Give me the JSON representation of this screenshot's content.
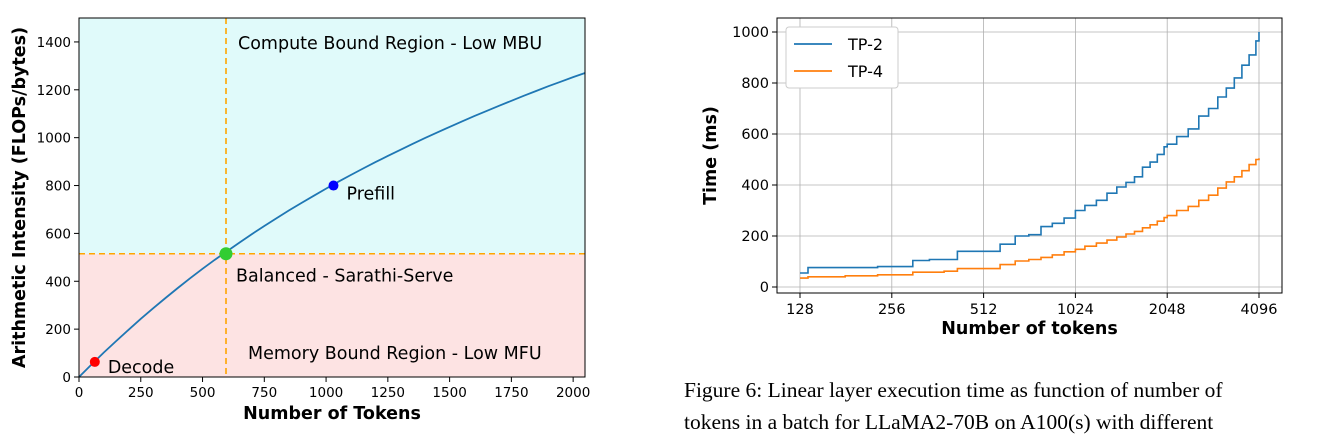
{
  "chart_data": [
    {
      "type": "line",
      "xlabel": "Number of Tokens",
      "ylabel": "Arithmetic Intensity (FLOPs/bytes)",
      "xlim": [
        0,
        2048
      ],
      "ylim": [
        0,
        1500
      ],
      "xticks": [
        0,
        250,
        500,
        750,
        1000,
        1250,
        1500,
        1750,
        2000
      ],
      "yticks": [
        0,
        200,
        400,
        600,
        800,
        1000,
        1200,
        1400
      ],
      "grid": false,
      "series": [
        {
          "color": "#1f77b4",
          "x": [
            0,
            50,
            100,
            150,
            200,
            250,
            300,
            350,
            400,
            450,
            500,
            550,
            600,
            650,
            700,
            750,
            800,
            850,
            900,
            950,
            1000,
            1050,
            1100,
            1150,
            1200,
            1250,
            1300,
            1350,
            1400,
            1450,
            1500,
            1550,
            1600,
            1650,
            1700,
            1750,
            1800,
            1850,
            1900,
            1950,
            2000,
            2048
          ],
          "values": [
            0,
            52,
            102,
            150,
            197,
            243,
            287,
            330,
            372,
            413,
            452,
            490,
            526,
            562,
            597,
            631,
            664,
            696,
            727,
            757,
            787,
            816,
            844,
            871,
            898,
            924,
            949,
            974,
            998,
            1022,
            1045,
            1068,
            1090,
            1112,
            1133,
            1154,
            1175,
            1195,
            1215,
            1234,
            1253,
            1270
          ]
        }
      ],
      "threshold_x": 595,
      "threshold_y": 515,
      "threshold_color": "#ffa500",
      "region_colors": {
        "compute": "#e0fafa",
        "memory": "#fde3e3"
      },
      "region_labels": {
        "compute": "Compute Bound Region - Low MBU",
        "memory": "Memory Bound Region - Low MFU"
      },
      "points": [
        {
          "label": "Decode",
          "x": 64,
          "y": 63,
          "color": "#ff0000"
        },
        {
          "label": "Balanced - Sarathi-Serve",
          "x": 595,
          "y": 515,
          "color": "#32cd32"
        },
        {
          "label": "Prefill",
          "x": 1030,
          "y": 800,
          "color": "#0000ff"
        }
      ]
    },
    {
      "type": "line",
      "xlabel": "Number of tokens",
      "ylabel": "Time (ms)",
      "xscale": "log2",
      "xlim": [
        128,
        4096
      ],
      "ylim": [
        0,
        1000
      ],
      "xticks": [
        128,
        256,
        512,
        1024,
        2048,
        4096
      ],
      "yticks": [
        0,
        200,
        400,
        600,
        800,
        1000
      ],
      "grid": true,
      "legend": "top-left",
      "series": [
        {
          "name": "TP-2",
          "color": "#1f77b4",
          "x": [
            128,
            136,
            180,
            230,
            256,
            300,
            340,
            380,
            420,
            460,
            512,
            580,
            650,
            720,
            790,
            860,
            940,
            1024,
            1100,
            1200,
            1300,
            1400,
            1500,
            1600,
            1700,
            1800,
            1900,
            2000,
            2048,
            2200,
            2400,
            2600,
            2800,
            3000,
            3200,
            3400,
            3600,
            3800,
            4000,
            4096
          ],
          "values": [
            55,
            76,
            76,
            80,
            80,
            104,
            108,
            108,
            140,
            140,
            140,
            168,
            200,
            205,
            237,
            250,
            270,
            300,
            320,
            340,
            368,
            392,
            410,
            432,
            470,
            490,
            520,
            550,
            560,
            590,
            620,
            670,
            700,
            745,
            780,
            820,
            870,
            910,
            965,
            1000
          ]
        },
        {
          "name": "TP-4",
          "color": "#ff7f0e",
          "x": [
            128,
            136,
            180,
            230,
            256,
            300,
            340,
            380,
            420,
            460,
            512,
            580,
            650,
            720,
            790,
            860,
            940,
            1024,
            1100,
            1200,
            1300,
            1400,
            1500,
            1600,
            1700,
            1800,
            1900,
            2000,
            2048,
            2200,
            2400,
            2600,
            2800,
            3000,
            3200,
            3400,
            3600,
            3800,
            4000,
            4096
          ],
          "values": [
            35,
            40,
            44,
            48,
            48,
            58,
            58,
            62,
            72,
            72,
            72,
            88,
            102,
            108,
            116,
            126,
            138,
            148,
            160,
            172,
            184,
            196,
            208,
            218,
            232,
            244,
            258,
            272,
            280,
            300,
            316,
            340,
            360,
            388,
            412,
            432,
            456,
            480,
            500,
            505
          ]
        }
      ]
    }
  ],
  "figure_caption": [
    "Figure 6: Linear layer execution time as function of number of",
    "tokens in a batch for LLaMA2-70B on A100(s) with different"
  ]
}
